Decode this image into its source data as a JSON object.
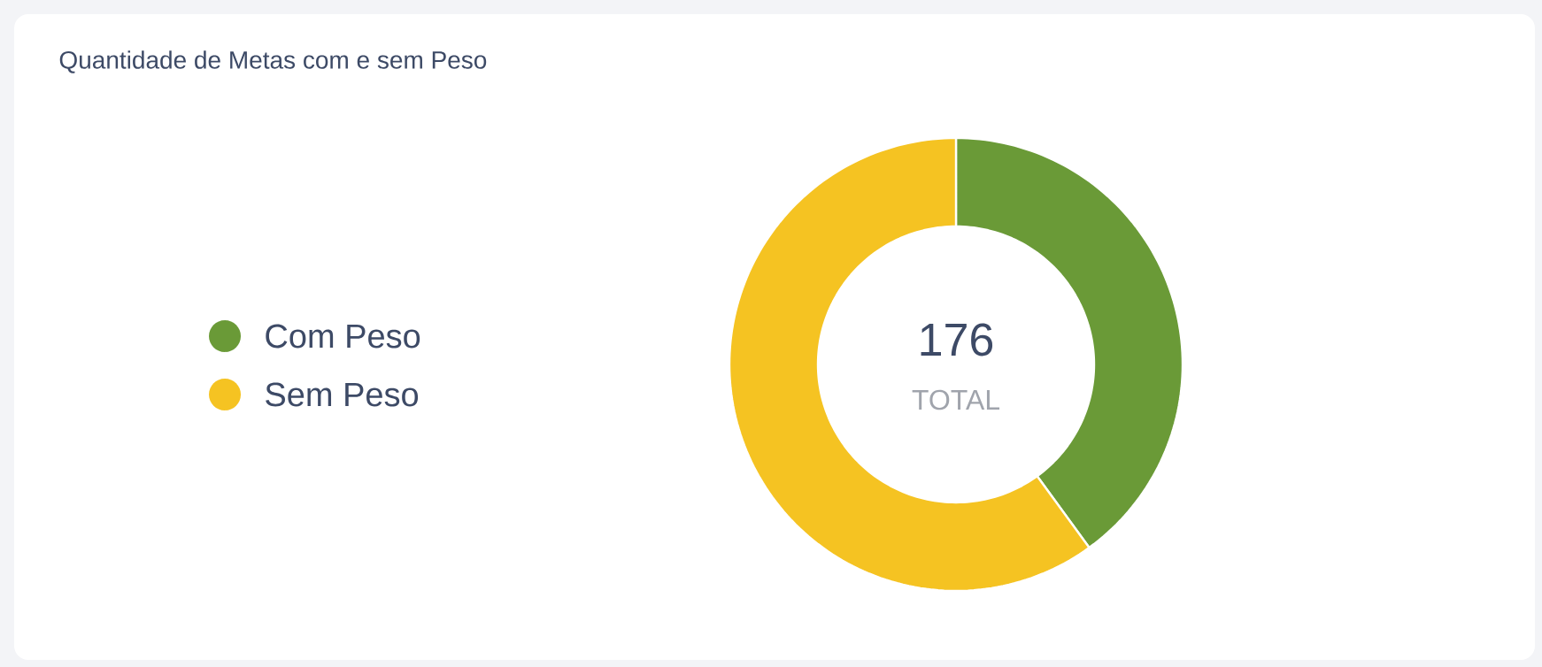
{
  "chart_data": {
    "type": "donut",
    "title": "Quantidade de Metas com e sem Peso",
    "categories": [
      "Com Peso",
      "Sem Peso"
    ],
    "values": [
      40,
      60
    ],
    "colors": [
      "#6a9a37",
      "#f5c322"
    ],
    "legend": "left",
    "annotations": [
      "176",
      "TOTAL"
    ]
  }
}
